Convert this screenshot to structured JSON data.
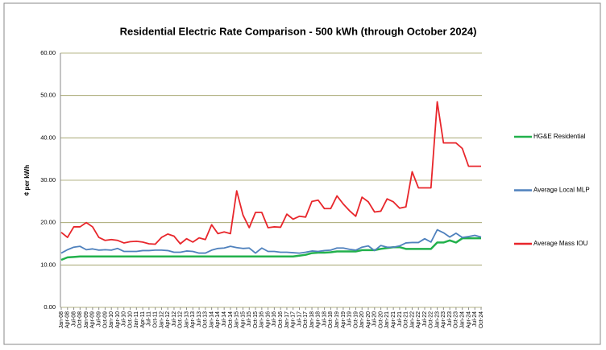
{
  "chart_data": {
    "type": "line",
    "title": "Residential Electric Rate Comparison - 500 kWh (through October 2024)",
    "y_label": "¢ per kWh",
    "categories": [
      "Jan-08",
      "Apr-08",
      "Jul-08",
      "Oct-08",
      "Jan-09",
      "Apr-09",
      "Jul-09",
      "Oct-09",
      "Jan-10",
      "Apr-10",
      "Jul-10",
      "Oct-10",
      "Jan-11",
      "Apr-11",
      "Jul-11",
      "Oct-11",
      "Jan-12",
      "Apr-12",
      "Jul-12",
      "Oct-12",
      "Jan-13",
      "Apr-13",
      "Jul-13",
      "Oct-13",
      "Jan-14",
      "Apr-14",
      "Jul-14",
      "Oct-14",
      "Jan-15",
      "Apr-15",
      "Jul-15",
      "Oct-15",
      "Jan-16",
      "Apr-16",
      "Jul-16",
      "Oct-16",
      "Jan-17",
      "Apr-17",
      "Jul-17",
      "Oct-17",
      "Jan-18",
      "Apr-18",
      "Jul-18",
      "Oct-18",
      "Jan-19",
      "Apr-19",
      "Jul-19",
      "Oct-19",
      "Jan-20",
      "Apr-20",
      "Jul-20",
      "Oct-20",
      "Jan-21",
      "Apr-21",
      "Jul-21",
      "Oct-21",
      "Jan-22",
      "Apr-22",
      "Jul-22",
      "Oct-22",
      "Jan-23",
      "Apr-23",
      "Jul-23",
      "Oct-23",
      "Jan-24",
      "Apr-24",
      "Jul-24",
      "Oct-24"
    ],
    "series": [
      {
        "name": "HG&E Residential",
        "color": "#22b14c",
        "values": [
          11.2,
          11.8,
          11.9,
          12.0,
          12.0,
          12.0,
          12.0,
          12.0,
          12.0,
          12.0,
          12.0,
          12.0,
          12.0,
          12.0,
          12.0,
          12.0,
          12.0,
          12.0,
          12.0,
          12.0,
          12.0,
          12.0,
          12.0,
          12.0,
          12.0,
          12.0,
          12.0,
          12.0,
          12.0,
          12.0,
          12.0,
          12.0,
          12.0,
          12.0,
          12.0,
          12.0,
          12.0,
          12.0,
          12.2,
          12.4,
          12.8,
          12.9,
          12.9,
          13.0,
          13.2,
          13.2,
          13.2,
          13.2,
          13.5,
          13.5,
          13.5,
          13.8,
          14.0,
          14.2,
          14.2,
          13.8,
          13.8,
          13.8,
          13.8,
          13.8,
          15.3,
          15.3,
          15.8,
          15.3,
          16.3,
          16.3,
          16.3,
          16.3
        ]
      },
      {
        "name": "Average Local MLP",
        "color": "#4f81bd",
        "values": [
          12.8,
          13.6,
          14.2,
          14.4,
          13.6,
          13.8,
          13.5,
          13.6,
          13.5,
          13.9,
          13.2,
          13.2,
          13.2,
          13.4,
          13.4,
          13.5,
          13.5,
          13.4,
          13.0,
          13.0,
          13.3,
          13.2,
          12.8,
          12.8,
          13.5,
          13.9,
          14.0,
          14.4,
          14.1,
          13.9,
          14.0,
          12.8,
          14.0,
          13.2,
          13.2,
          13.0,
          13.0,
          12.9,
          12.8,
          13.0,
          13.3,
          13.2,
          13.4,
          13.5,
          14.0,
          14.0,
          13.7,
          13.5,
          14.2,
          14.5,
          13.4,
          14.6,
          14.2,
          14.2,
          14.5,
          15.2,
          15.3,
          15.3,
          16.2,
          15.4,
          18.3,
          17.6,
          16.6,
          17.5,
          16.5,
          16.7,
          17.0,
          16.6
        ]
      },
      {
        "name": "Average Mass IOU",
        "color": "#e8262b",
        "values": [
          17.7,
          16.5,
          19.0,
          19.0,
          20.0,
          19.0,
          16.5,
          15.8,
          16.0,
          15.8,
          15.2,
          15.5,
          15.6,
          15.4,
          15.0,
          14.9,
          16.5,
          17.3,
          16.8,
          15.0,
          16.2,
          15.4,
          16.4,
          16.0,
          19.5,
          17.4,
          17.8,
          17.4,
          27.5,
          21.8,
          18.8,
          22.4,
          22.4,
          18.8,
          19.0,
          18.9,
          22.0,
          20.8,
          21.5,
          21.3,
          25.0,
          25.3,
          23.3,
          23.3,
          26.3,
          24.4,
          22.8,
          21.5,
          26.0,
          24.9,
          22.5,
          22.7,
          25.6,
          24.9,
          23.4,
          23.7,
          32.0,
          28.2,
          28.2,
          28.2,
          48.5,
          38.8,
          38.8,
          38.8,
          37.5,
          33.3,
          33.3,
          33.3
        ]
      }
    ],
    "ylim": [
      0,
      60
    ],
    "yticks": [
      {
        "value": 0,
        "label": "0.00"
      },
      {
        "value": 10,
        "label": "10.00"
      },
      {
        "value": 20,
        "label": "20.00"
      },
      {
        "value": 30,
        "label": "30.00"
      },
      {
        "value": 40,
        "label": "40.00"
      },
      {
        "value": 50,
        "label": "50.00"
      },
      {
        "value": 60,
        "label": "60.00"
      }
    ],
    "grid": true,
    "grid_color": "#9b9b5f",
    "legend": "right"
  }
}
